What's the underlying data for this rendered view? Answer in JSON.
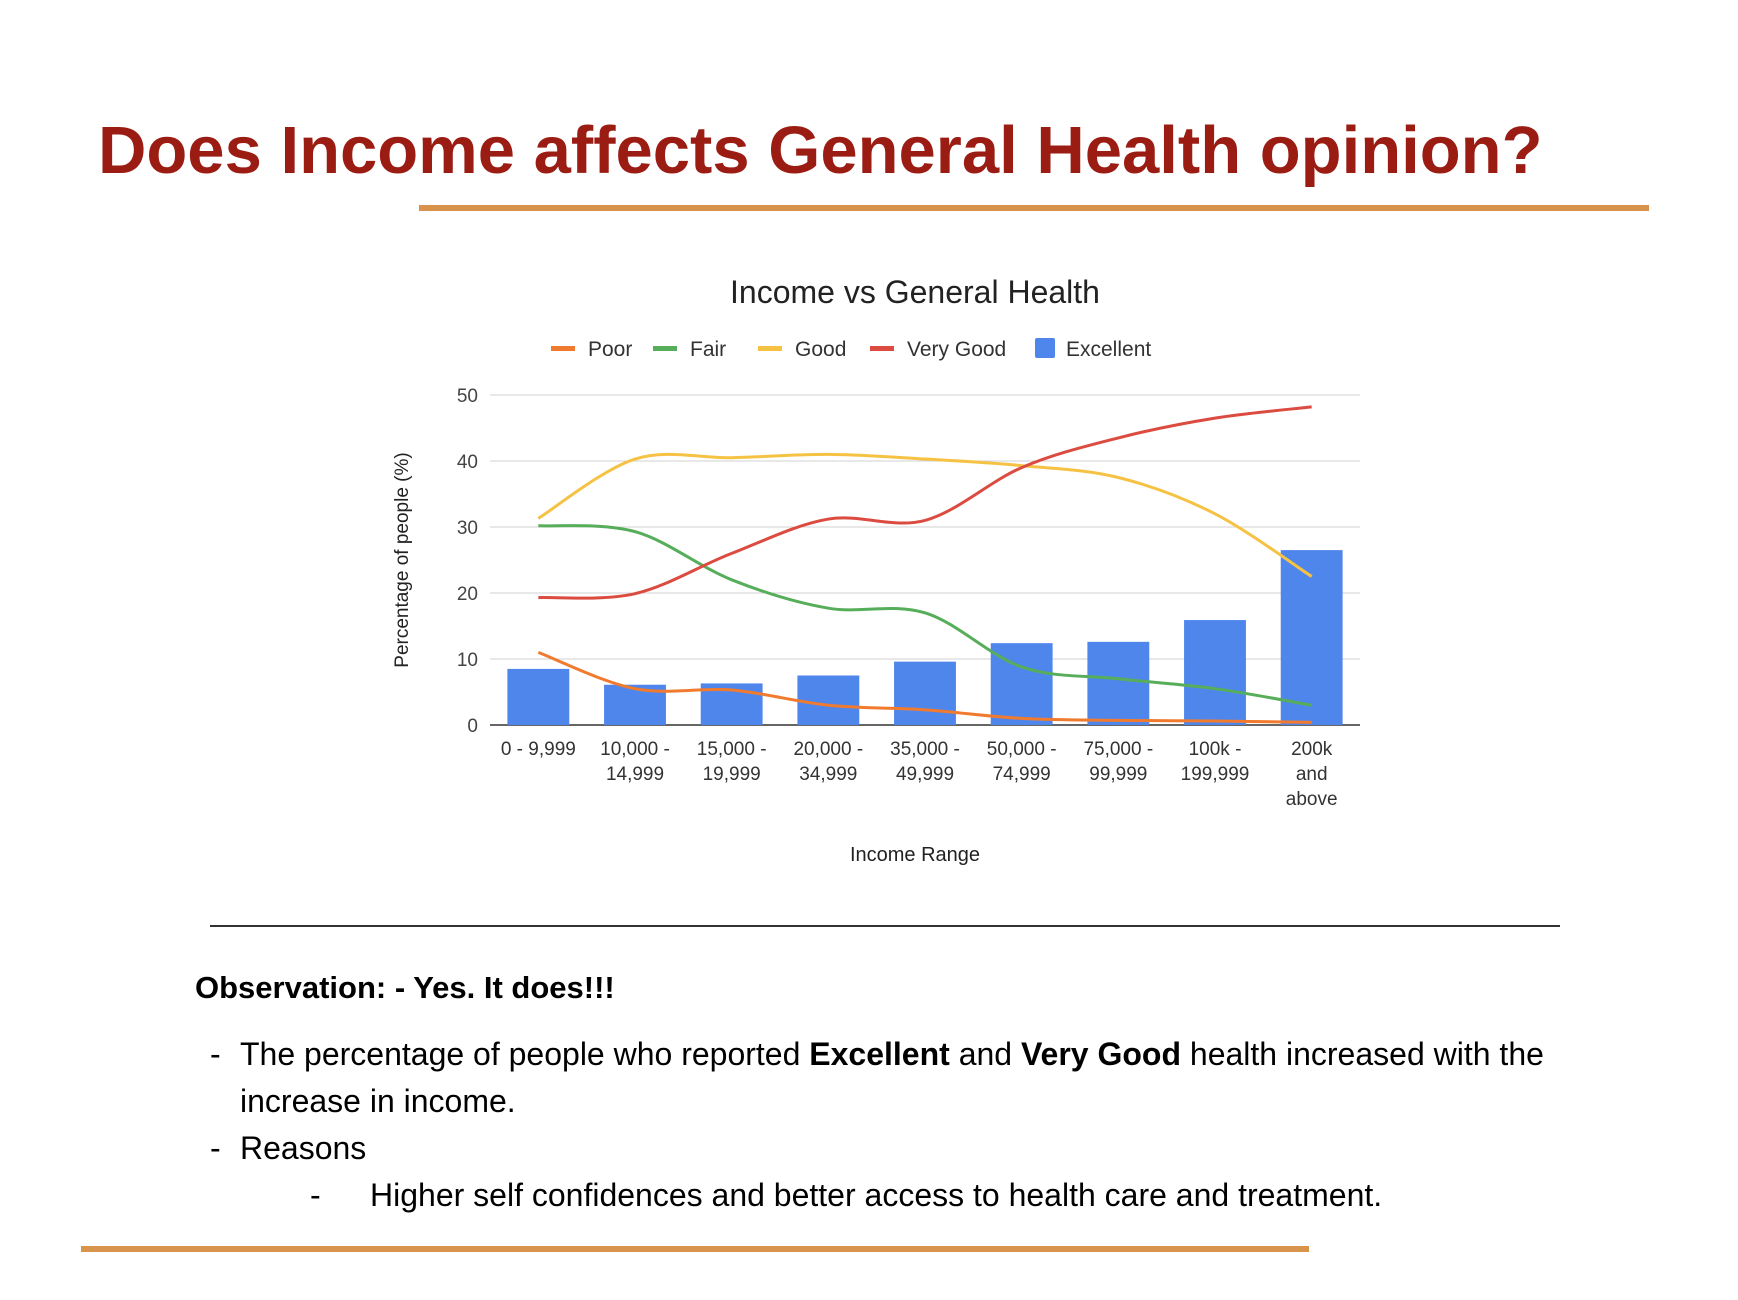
{
  "slide": {
    "title": "Does Income affects General Health opinion?",
    "accent_color": "#d8944c",
    "title_color": "#9b1c13"
  },
  "chart_data": {
    "type": "bar",
    "title": "Income vs General Health",
    "xlabel": "Income Range",
    "ylabel": "Percentage of people (%)",
    "ylim": [
      0,
      50
    ],
    "yticks": [
      0,
      10,
      20,
      30,
      40,
      50
    ],
    "grid": true,
    "legend_position": "top",
    "categories": [
      [
        "0 - 9,999"
      ],
      [
        "10,000 -",
        "14,999"
      ],
      [
        "15,000 -",
        "19,999"
      ],
      [
        "20,000 -",
        "34,999"
      ],
      [
        "35,000 -",
        "49,999"
      ],
      [
        "50,000 -",
        "74,999"
      ],
      [
        "75,000 -",
        "99,999"
      ],
      [
        "100k -",
        "199,999"
      ],
      [
        "200k",
        "and",
        "above"
      ]
    ],
    "series": [
      {
        "name": "Poor",
        "type": "line",
        "color": "#f07b2f",
        "values": [
          11,
          5.5,
          5.3,
          3,
          2.3,
          1,
          0.7,
          0.6,
          0.4
        ]
      },
      {
        "name": "Fair",
        "type": "line",
        "color": "#57ae5a",
        "values": [
          30.2,
          29.3,
          22,
          17.7,
          17,
          8.8,
          7,
          5.5,
          3
        ]
      },
      {
        "name": "Good",
        "type": "line",
        "color": "#f6c244",
        "values": [
          31.3,
          40.3,
          40.5,
          41,
          40.3,
          39.3,
          37.5,
          32,
          22.5
        ]
      },
      {
        "name": "Very Good",
        "type": "line",
        "color": "#dc4b40",
        "values": [
          19.3,
          19.9,
          26,
          31.2,
          31,
          39,
          43.5,
          46.5,
          48.2
        ]
      },
      {
        "name": "Excellent",
        "type": "bar",
        "color": "#4f86ec",
        "values": [
          8.5,
          6.1,
          6.3,
          7.5,
          9.6,
          12.4,
          12.6,
          15.9,
          26.5
        ]
      }
    ]
  },
  "observation": {
    "heading": "Observation: - Yes. It does!!!",
    "bullet_marker": "-",
    "bullet1_pre": "The percentage of people who reported ",
    "bullet1_bold1": "Excellent",
    "bullet1_mid": " and ",
    "bullet1_bold2": "Very Good",
    "bullet1_post": " health increased with the increase in income.",
    "bullet2": "Reasons",
    "sub_bullet": "Higher self confidences and better access to health care and treatment."
  }
}
